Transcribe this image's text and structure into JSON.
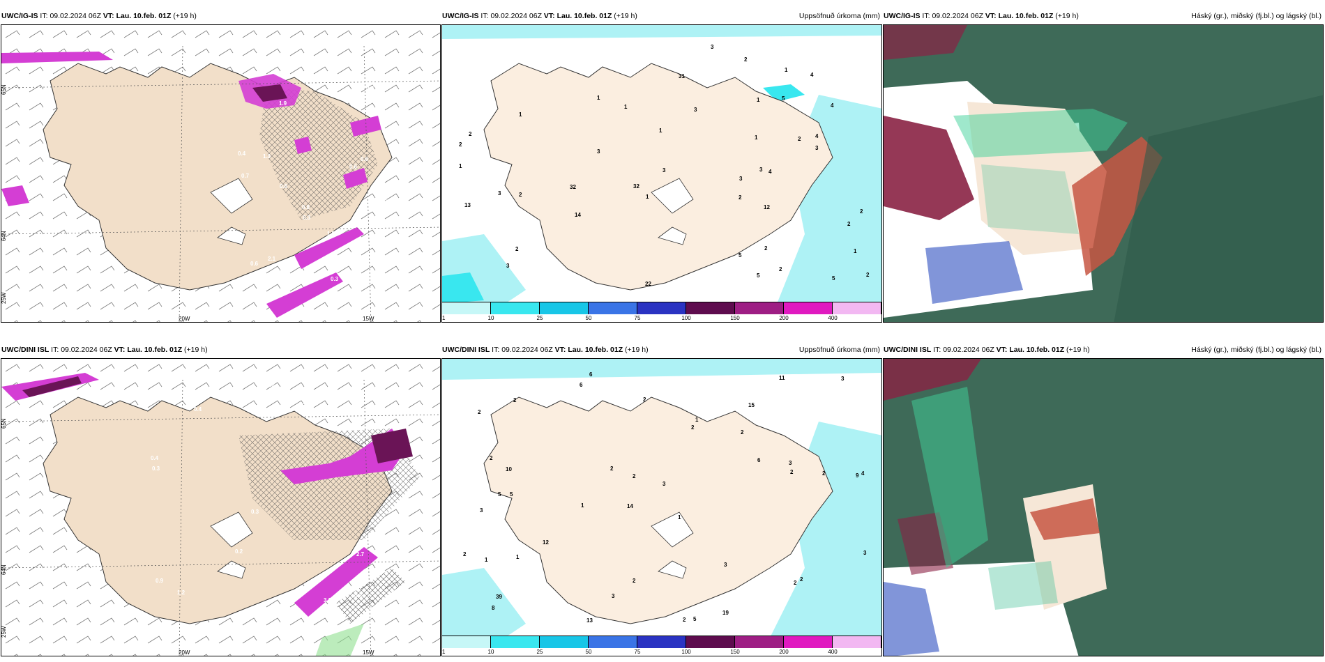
{
  "rows": [
    {
      "model": "UWC/IG-IS",
      "it_label": "IT:",
      "it_value": "09.02.2024 06Z",
      "vt_label": "VT:",
      "vt_value": "Lau. 10.feb. 01Z",
      "lead": "(+19 h)",
      "precip_title": "Uppsöfnuð úrkoma (mm)",
      "cloud_title": "Háský (gr.), miðský (fj.bl.) og lágský (bl.)",
      "axis": {
        "lon1": "20W",
        "lon2": "15W",
        "lat_a": "65N",
        "lat_b": "64N",
        "lat_c": "25W"
      },
      "wind_labels": [
        "3.4",
        "1.9",
        "2.1",
        "1.3",
        "0.6",
        "0.3",
        "2.8",
        "0.6",
        "0.3",
        "1.1",
        "0.6",
        "0.4",
        "0.8",
        "1.5",
        "0.6",
        "0.3",
        "0.7"
      ],
      "precip_labels": [
        "2",
        "2",
        "2",
        "2",
        "5",
        "5",
        "4",
        "1",
        "1",
        "2",
        "3",
        "3",
        "13",
        "12",
        "14",
        "5",
        "4",
        "3",
        "1",
        "1",
        "1",
        "1",
        "1",
        "2",
        "3",
        "2",
        "1",
        "1",
        "2",
        "2",
        "4",
        "3",
        "2",
        "2",
        "3",
        "3",
        "3",
        "3",
        "4",
        "5",
        "32",
        "32",
        "31",
        "22",
        "2",
        "1"
      ]
    },
    {
      "model": "UWC/DINI ISL",
      "it_label": "IT:",
      "it_value": "09.02.2024 06Z",
      "vt_label": "VT:",
      "vt_value": "Lau. 10.feb. 01Z",
      "lead": "(+19 h)",
      "precip_title": "Uppsöfnuð úrkoma (mm)",
      "cloud_title": "Háský (gr.), miðský (fj.bl.) og lágský (bl.)",
      "axis": {
        "lon1": "20W",
        "lon2": "15W",
        "lat_a": "65N",
        "lat_b": "64N",
        "lat_c": "25W"
      },
      "wind_labels": [
        "2.1",
        "2.7",
        "0.3",
        "0.2",
        "0.4",
        "0.3",
        "0.6",
        "1.5",
        "3.2",
        "0.9",
        "0.3",
        "0.3",
        "1.2",
        "0.6",
        "0.6",
        "0.4"
      ],
      "precip_labels": [
        "6",
        "15",
        "9",
        "14",
        "1",
        "5",
        "2",
        "2",
        "3",
        "2",
        "3",
        "8",
        "6",
        "1",
        "2",
        "5",
        "2",
        "11",
        "6",
        "12",
        "10",
        "5",
        "4",
        "2",
        "2",
        "2",
        "2",
        "2",
        "2",
        "1",
        "2",
        "1",
        "1",
        "2",
        "3",
        "3",
        "3",
        "3",
        "3",
        "2",
        "39",
        "13",
        "19",
        "2"
      ]
    }
  ],
  "colorbar": {
    "ticks": [
      "1",
      "10",
      "25",
      "50",
      "75",
      "100",
      "150",
      "200",
      "400"
    ],
    "colors": [
      "#c6f7f7",
      "#39e7ef",
      "#18c6e7",
      "#3a74e6",
      "#2a33c2",
      "#5e0c4e",
      "#9e1e84",
      "#e01ac0",
      "#f2b8f2"
    ]
  },
  "colors": {
    "land": "#f7e8d6",
    "precip_light": "#aef2f5",
    "wind_magenta": "#d43ed4",
    "cloud_high": "#3c6b5a",
    "cloud_mid": "#3acb8f",
    "cloud_red": "#c0483a"
  }
}
